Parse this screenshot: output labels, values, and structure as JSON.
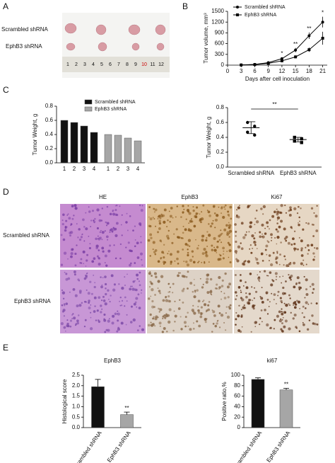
{
  "panel_labels": [
    "A",
    "B",
    "C",
    "D",
    "E"
  ],
  "panel_a": {
    "row_labels": [
      "Scrambled shRNA",
      "EphB3 shRNA"
    ],
    "ruler_labels": [
      "1",
      "2",
      "3",
      "4",
      "5",
      "6",
      "7",
      "8",
      "9",
      "10",
      "11",
      "12"
    ]
  },
  "panel_d": {
    "column_headers": [
      "HE",
      "EphB3",
      "Ki67"
    ],
    "row_labels": [
      "Scrambled shRNA",
      "EphB3 shRNA"
    ]
  },
  "chart_data": [
    {
      "type": "line",
      "ylabel": "Tumor volume, mm³",
      "xlabel": "Days after cell inoculation",
      "x": [
        3,
        6,
        9,
        12,
        15,
        18,
        21
      ],
      "series": [
        {
          "name": "Scrambled shRNA",
          "color": "#000000",
          "marker": "circle",
          "values": [
            5,
            20,
            70,
            180,
            420,
            820,
            1200
          ],
          "errors": [
            2,
            6,
            20,
            40,
            60,
            90,
            150
          ]
        },
        {
          "name": "EphB3 shRNA",
          "color": "#000000",
          "marker": "square",
          "values": [
            5,
            15,
            50,
            120,
            230,
            430,
            750
          ],
          "errors": [
            2,
            5,
            15,
            30,
            40,
            60,
            180
          ]
        }
      ],
      "xlim": [
        0,
        22
      ],
      "xticks": [
        0,
        3,
        6,
        9,
        12,
        15,
        18,
        21
      ],
      "ylim": [
        0,
        1500
      ],
      "yticks": [
        0,
        300,
        600,
        900,
        1200,
        1500
      ],
      "legend": "top-left",
      "annotations": [
        {
          "x": 12,
          "text": "*"
        },
        {
          "x": 15,
          "text": "**"
        },
        {
          "x": 18,
          "text": "**"
        },
        {
          "x": 21,
          "text": "*"
        }
      ]
    },
    {
      "type": "bar",
      "ylabel": "Tumor Weight, g",
      "categories": [
        "1",
        "2",
        "3",
        "4"
      ],
      "series": [
        {
          "name": "Scrambled shRNA",
          "color": "#111111",
          "values": [
            0.6,
            0.57,
            0.52,
            0.43
          ]
        },
        {
          "name": "EphB3 shRNA",
          "color": "#a6a6a6",
          "values": [
            0.4,
            0.39,
            0.35,
            0.31
          ]
        }
      ],
      "ylim": [
        0,
        0.8
      ],
      "yticks": [
        {
          "value": 0,
          "label": "0.0"
        },
        0.2,
        0.4,
        0.6,
        0.8
      ],
      "legend": "top-right"
    },
    {
      "type": "scatter",
      "ylabel": "Tumor Weight, g",
      "categories": [
        "Scrambled shRNA",
        "EphB3 shRNA"
      ],
      "groups": [
        {
          "marker": "circle",
          "color": "#000000",
          "values": [
            0.6,
            0.55,
            0.47,
            0.43
          ],
          "mean": 0.53,
          "sd": 0.08
        },
        {
          "marker": "square",
          "color": "#000000",
          "values": [
            0.4,
            0.38,
            0.35,
            0.33
          ],
          "mean": 0.37,
          "sd": 0.03
        }
      ],
      "ylim": [
        0,
        0.8
      ],
      "yticks": [
        {
          "value": 0,
          "label": "0.0"
        },
        0.2,
        0.4,
        0.6,
        0.8
      ],
      "annotation": "**"
    },
    {
      "type": "bar",
      "title": "EphB3",
      "ylabel": "Histological score",
      "categories": [
        "Scrambled shRNA",
        "EphB3 shRNA"
      ],
      "values": [
        1.95,
        0.62
      ],
      "errors": [
        0.35,
        0.12
      ],
      "colors": [
        "#111111",
        "#a6a6a6"
      ],
      "ylim": [
        0,
        2.5
      ],
      "yticks": [
        {
          "value": 0,
          "label": "0.0"
        },
        0.5,
        {
          "value": 1,
          "label": "1.0"
        },
        1.5,
        {
          "value": 2,
          "label": "2.0"
        },
        2.5
      ],
      "annotation": "**"
    },
    {
      "type": "bar",
      "title": "ki67",
      "ylabel": "Positive ratio,%",
      "categories": [
        "Scrambled shRNA",
        "EphB3 shRNA"
      ],
      "values": [
        92,
        72
      ],
      "errors": [
        3,
        3
      ],
      "colors": [
        "#111111",
        "#a6a6a6"
      ],
      "ylim": [
        0,
        100
      ],
      "yticks": [
        0,
        20,
        40,
        60,
        80,
        100
      ],
      "annotation": "**"
    }
  ]
}
